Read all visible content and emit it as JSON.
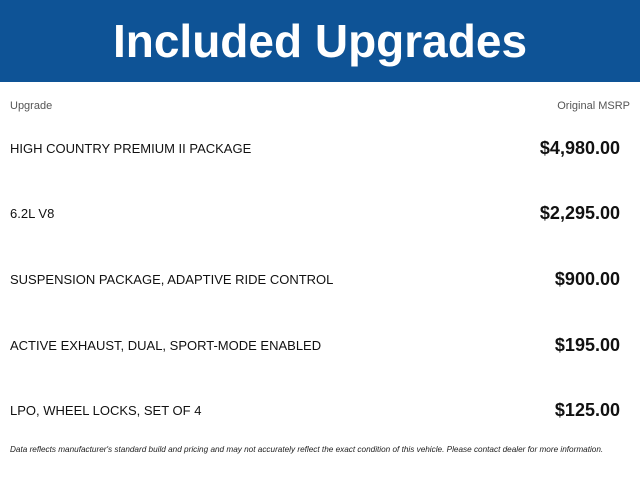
{
  "title": "Included Upgrades",
  "columns": {
    "upgrade": "Upgrade",
    "msrp": "Original MSRP"
  },
  "rows": [
    {
      "name": "HIGH COUNTRY PREMIUM II PACKAGE",
      "price": "$4,980.00"
    },
    {
      "name": "6.2L V8",
      "price": "$2,295.00"
    },
    {
      "name": "SUSPENSION PACKAGE, ADAPTIVE RIDE CONTROL",
      "price": "$900.00"
    },
    {
      "name": "ACTIVE EXHAUST, DUAL, SPORT-MODE ENABLED",
      "price": "$195.00"
    },
    {
      "name": "LPO, WHEEL LOCKS, SET OF 4",
      "price": "$125.00"
    }
  ],
  "disclaimer": "Data reflects manufacturer's standard build and pricing and may not accurately reflect the exact condition of this vehicle. Please contact dealer for more information.",
  "colors": {
    "banner": "#0e5396"
  }
}
